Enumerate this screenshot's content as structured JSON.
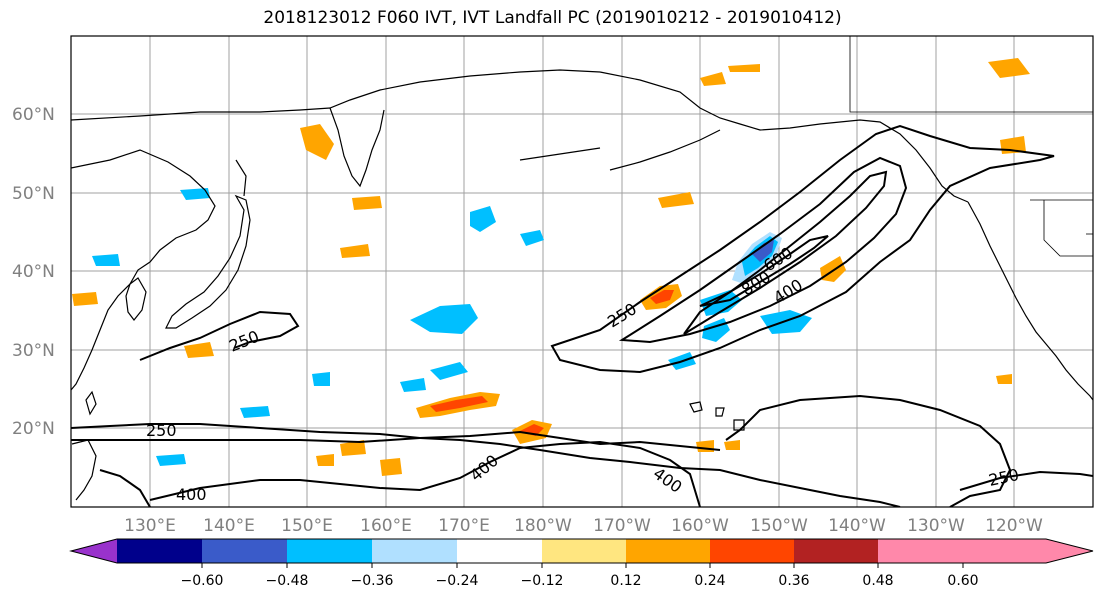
{
  "title": "2018123012 F060 IVT, IVT Landfall PC (2019010212 - 2019010412)",
  "lat_labels": [
    "60°N",
    "50°N",
    "40°N",
    "30°N",
    "20°N"
  ],
  "lon_labels": [
    "130°E",
    "140°E",
    "150°E",
    "160°E",
    "170°E",
    "180°W",
    "170°W",
    "160°W",
    "150°W",
    "140°W",
    "130°W",
    "120°W"
  ],
  "contour_labels": [
    "250",
    "250",
    "250",
    "250",
    "400",
    "400",
    "400",
    "400",
    "600",
    "800"
  ],
  "colorbar": {
    "ticks": [
      "−0.60",
      "−0.48",
      "−0.36",
      "−0.24",
      "−0.12",
      "0.12",
      "0.24",
      "0.36",
      "0.48",
      "0.60"
    ],
    "colors": [
      "#9932cc",
      "#00008b",
      "#3a5bc9",
      "#00bfff",
      "#b0e0ff",
      "#ffffff",
      "#ffe680",
      "#ffa500",
      "#ff4500",
      "#b22222",
      "#ff88aa"
    ]
  },
  "colors": {
    "coastline": "#000000",
    "grid": "#a0a0a0",
    "label": "#808080"
  }
}
